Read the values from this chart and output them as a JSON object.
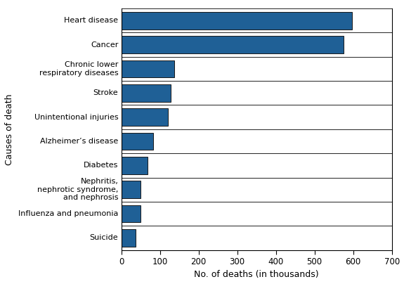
{
  "categories": [
    "Heart disease",
    "Cancer",
    "Chronic lower\nrespiratory diseases",
    "Stroke",
    "Unintentional injuries",
    "Alzheimer’s disease",
    "Diabetes",
    "Nephritis,\nnephrotic syndrome,\nand nephrosis",
    "Influenza and pneumonia",
    "Suicide"
  ],
  "values": [
    597,
    575,
    138,
    129,
    120,
    83,
    69,
    50,
    50,
    38
  ],
  "bar_color": "#1F6096",
  "bar_edgecolor": "#1a1a1a",
  "xlabel": "No. of deaths (in thousands)",
  "ylabel": "Causes of death",
  "xlim": [
    0,
    700
  ],
  "xticks": [
    0,
    100,
    200,
    300,
    400,
    500,
    600,
    700
  ],
  "xlabel_fontsize": 9,
  "ylabel_fontsize": 9,
  "tick_fontsize": 8.5,
  "category_fontsize": 8.0,
  "background_color": "#ffffff",
  "bar_height": 0.72
}
